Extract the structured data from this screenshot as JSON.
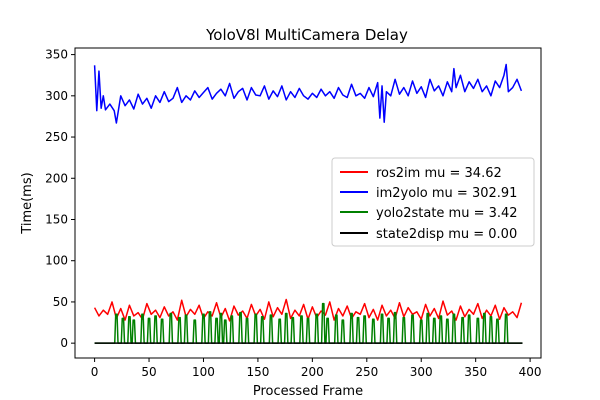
{
  "chart_data": {
    "type": "line",
    "title": "YoloV8l MultiCamera Delay",
    "xlabel": "Processed Frame",
    "ylabel": "Time(ms)",
    "xlim": [
      -18,
      410
    ],
    "ylim": [
      -18,
      358
    ],
    "xticks": [
      0,
      50,
      100,
      150,
      200,
      250,
      300,
      350,
      400
    ],
    "yticks": [
      0,
      50,
      100,
      150,
      200,
      250,
      300,
      350
    ],
    "grid": false,
    "legend_position": "center-right",
    "series": [
      {
        "name": "ros2im mu = 34.62",
        "color": "#ff0000",
        "x": [
          0,
          4,
          8,
          12,
          16,
          20,
          24,
          28,
          32,
          36,
          40,
          44,
          48,
          52,
          56,
          60,
          64,
          68,
          72,
          76,
          80,
          84,
          88,
          92,
          96,
          100,
          104,
          108,
          112,
          116,
          120,
          124,
          128,
          132,
          136,
          140,
          144,
          148,
          152,
          156,
          160,
          164,
          168,
          172,
          176,
          180,
          184,
          188,
          192,
          196,
          200,
          204,
          208,
          212,
          216,
          220,
          224,
          228,
          232,
          236,
          240,
          244,
          248,
          252,
          256,
          260,
          264,
          268,
          272,
          276,
          280,
          284,
          288,
          292,
          296,
          300,
          304,
          308,
          312,
          316,
          320,
          324,
          328,
          332,
          336,
          340,
          344,
          348,
          352,
          356,
          360,
          364,
          368,
          372,
          376,
          380,
          384,
          388,
          392
        ],
        "y": [
          43,
          33,
          40,
          35,
          50,
          30,
          42,
          28,
          46,
          33,
          37,
          29,
          48,
          35,
          40,
          31,
          44,
          33,
          38,
          28,
          52,
          32,
          41,
          35,
          46,
          30,
          38,
          33,
          49,
          31,
          42,
          27,
          45,
          34,
          39,
          30,
          47,
          33,
          41,
          29,
          50,
          32,
          43,
          35,
          53,
          30,
          40,
          33,
          47,
          29,
          44,
          31,
          39,
          34,
          50,
          28,
          42,
          33,
          45,
          30,
          38,
          35,
          48,
          31,
          41,
          28,
          46,
          33,
          40,
          30,
          49,
          32,
          43,
          35,
          38,
          29,
          47,
          33,
          42,
          30,
          51,
          34,
          39,
          28,
          45,
          32,
          41,
          35,
          48,
          30,
          40,
          33,
          46,
          29,
          43,
          34,
          38,
          31,
          49
        ]
      },
      {
        "name": "im2yolo mu = 302.91",
        "color": "#0000ff",
        "x": [
          0,
          2,
          4,
          6,
          8,
          10,
          14,
          18,
          20,
          24,
          28,
          32,
          36,
          40,
          44,
          48,
          52,
          56,
          60,
          64,
          68,
          72,
          76,
          80,
          84,
          88,
          92,
          96,
          100,
          104,
          108,
          112,
          116,
          120,
          124,
          128,
          132,
          136,
          140,
          144,
          148,
          152,
          156,
          160,
          164,
          168,
          172,
          176,
          180,
          184,
          188,
          192,
          196,
          200,
          204,
          208,
          212,
          216,
          220,
          224,
          228,
          232,
          236,
          240,
          244,
          248,
          252,
          256,
          260,
          262,
          264,
          266,
          268,
          272,
          276,
          280,
          284,
          288,
          292,
          296,
          300,
          304,
          308,
          312,
          316,
          320,
          324,
          328,
          330,
          332,
          336,
          340,
          344,
          348,
          352,
          356,
          360,
          364,
          368,
          372,
          376,
          378,
          380,
          384,
          388,
          392
        ],
        "y": [
          337,
          282,
          330,
          285,
          300,
          283,
          290,
          282,
          267,
          300,
          288,
          295,
          284,
          302,
          290,
          297,
          285,
          300,
          292,
          305,
          293,
          297,
          310,
          292,
          300,
          295,
          306,
          298,
          304,
          310,
          296,
          303,
          308,
          300,
          315,
          297,
          305,
          309,
          295,
          310,
          301,
          300,
          312,
          296,
          306,
          299,
          312,
          295,
          305,
          298,
          309,
          300,
          296,
          303,
          298,
          308,
          300,
          305,
          297,
          310,
          301,
          298,
          314,
          300,
          303,
          297,
          310,
          299,
          316,
          273,
          312,
          268,
          305,
          300,
          320,
          302,
          310,
          300,
          318,
          303,
          311,
          298,
          320,
          306,
          312,
          300,
          317,
          305,
          333,
          310,
          325,
          305,
          317,
          309,
          320,
          305,
          312,
          300,
          318,
          310,
          325,
          338,
          305,
          310,
          320,
          306
        ]
      },
      {
        "name": "yolo2state mu = 3.42",
        "color": "#008000",
        "pulse_x": [
          20,
          26,
          32,
          36,
          44,
          50,
          56,
          62,
          70,
          78,
          84,
          92,
          100,
          106,
          112,
          116,
          120,
          126,
          134,
          140,
          148,
          154,
          162,
          170,
          176,
          182,
          190,
          196,
          204,
          210,
          214,
          222,
          228,
          236,
          242,
          248,
          256,
          264,
          270,
          276,
          284,
          292,
          300,
          306,
          312,
          318,
          324,
          330,
          338,
          344,
          352,
          358,
          364,
          370,
          378
        ],
        "pulse_y": [
          35,
          30,
          32,
          28,
          35,
          30,
          33,
          29,
          36,
          31,
          34,
          28,
          35,
          38,
          30,
          36,
          28,
          33,
          37,
          30,
          35,
          32,
          34,
          29,
          36,
          31,
          33,
          30,
          35,
          48,
          30,
          34,
          28,
          36,
          31,
          33,
          29,
          35,
          30,
          37,
          31,
          34,
          28,
          36,
          30,
          33,
          29,
          35,
          31,
          34,
          30,
          36,
          32,
          29,
          35
        ],
        "pulse_half_width": 1.5,
        "x_start": 0,
        "x_end": 393
      },
      {
        "name": "state2disp mu = 0.00",
        "color": "#000000",
        "x": [
          0,
          393
        ],
        "y": [
          0,
          0
        ]
      }
    ]
  }
}
